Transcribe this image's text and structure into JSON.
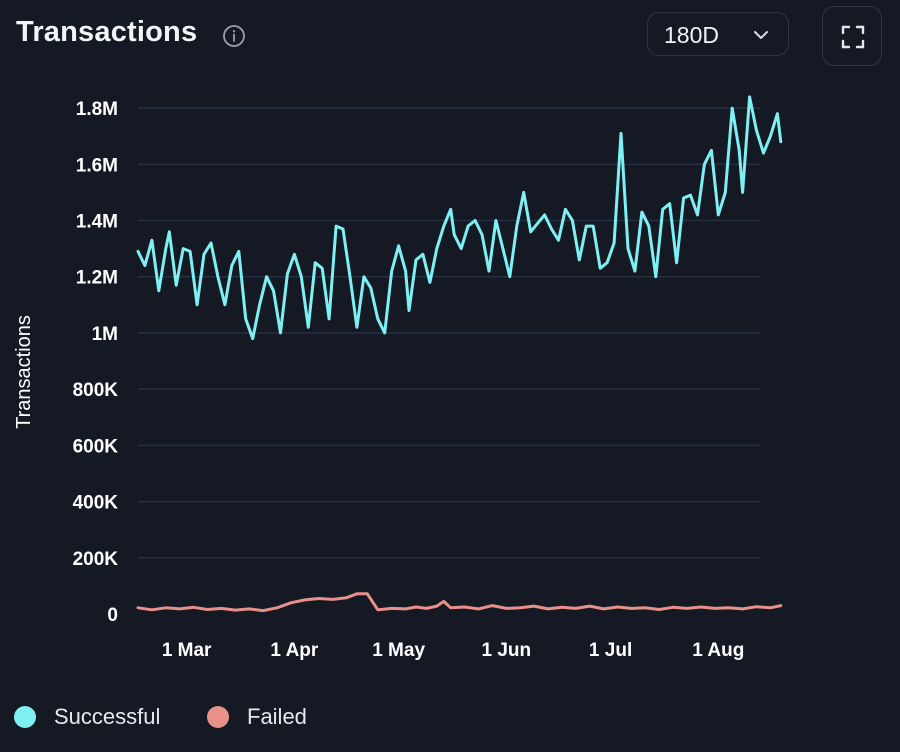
{
  "header": {
    "title": "Transactions",
    "range_value": "180D"
  },
  "colors": {
    "successful": "#7ef0f4",
    "failed": "#e8908a",
    "grid": "#253042",
    "text": "#ffffff"
  },
  "chart_data": {
    "type": "line",
    "title": "Transactions",
    "xlabel": "",
    "ylabel": "Transactions",
    "ylim": [
      0,
      1900000
    ],
    "grid": true,
    "legend_position": "bottom-left",
    "y_ticks": [
      {
        "value": 0,
        "label": "0"
      },
      {
        "value": 200000,
        "label": "200K"
      },
      {
        "value": 400000,
        "label": "400K"
      },
      {
        "value": 600000,
        "label": "600K"
      },
      {
        "value": 800000,
        "label": "800K"
      },
      {
        "value": 1000000,
        "label": "1M"
      },
      {
        "value": 1200000,
        "label": "1.2M"
      },
      {
        "value": 1400000,
        "label": "1.4M"
      },
      {
        "value": 1600000,
        "label": "1.6M"
      },
      {
        "value": 1800000,
        "label": "1.8M"
      }
    ],
    "x_ticks": [
      {
        "day": 14,
        "label": "1 Mar"
      },
      {
        "day": 45,
        "label": "1 Apr"
      },
      {
        "day": 75,
        "label": "1 May"
      },
      {
        "day": 106,
        "label": "1 Jun"
      },
      {
        "day": 136,
        "label": "1 Jul"
      },
      {
        "day": 167,
        "label": "1 Aug"
      }
    ],
    "x_start_day": 0,
    "x_end_day": 179,
    "series": [
      {
        "name": "Successful",
        "color": "#7ef0f4",
        "points": [
          [
            0,
            1290000
          ],
          [
            2,
            1240000
          ],
          [
            4,
            1330000
          ],
          [
            6,
            1150000
          ],
          [
            8,
            1300000
          ],
          [
            9,
            1360000
          ],
          [
            11,
            1170000
          ],
          [
            13,
            1300000
          ],
          [
            15,
            1290000
          ],
          [
            17,
            1100000
          ],
          [
            19,
            1280000
          ],
          [
            21,
            1320000
          ],
          [
            23,
            1200000
          ],
          [
            25,
            1100000
          ],
          [
            27,
            1240000
          ],
          [
            29,
            1290000
          ],
          [
            31,
            1050000
          ],
          [
            33,
            980000
          ],
          [
            35,
            1100000
          ],
          [
            37,
            1200000
          ],
          [
            39,
            1150000
          ],
          [
            41,
            1000000
          ],
          [
            43,
            1210000
          ],
          [
            45,
            1280000
          ],
          [
            47,
            1200000
          ],
          [
            49,
            1020000
          ],
          [
            51,
            1250000
          ],
          [
            53,
            1230000
          ],
          [
            55,
            1050000
          ],
          [
            57,
            1380000
          ],
          [
            59,
            1370000
          ],
          [
            61,
            1200000
          ],
          [
            63,
            1020000
          ],
          [
            65,
            1200000
          ],
          [
            67,
            1160000
          ],
          [
            69,
            1050000
          ],
          [
            71,
            1000000
          ],
          [
            73,
            1220000
          ],
          [
            75,
            1310000
          ],
          [
            77,
            1220000
          ],
          [
            78,
            1080000
          ],
          [
            80,
            1260000
          ],
          [
            82,
            1280000
          ],
          [
            84,
            1180000
          ],
          [
            86,
            1300000
          ],
          [
            88,
            1380000
          ],
          [
            90,
            1440000
          ],
          [
            91,
            1350000
          ],
          [
            93,
            1300000
          ],
          [
            95,
            1380000
          ],
          [
            97,
            1400000
          ],
          [
            99,
            1350000
          ],
          [
            101,
            1220000
          ],
          [
            103,
            1400000
          ],
          [
            105,
            1300000
          ],
          [
            107,
            1200000
          ],
          [
            109,
            1380000
          ],
          [
            111,
            1500000
          ],
          [
            113,
            1360000
          ],
          [
            115,
            1390000
          ],
          [
            117,
            1420000
          ],
          [
            119,
            1370000
          ],
          [
            121,
            1330000
          ],
          [
            123,
            1440000
          ],
          [
            125,
            1400000
          ],
          [
            127,
            1260000
          ],
          [
            129,
            1380000
          ],
          [
            131,
            1380000
          ],
          [
            133,
            1230000
          ],
          [
            135,
            1250000
          ],
          [
            137,
            1320000
          ],
          [
            139,
            1710000
          ],
          [
            141,
            1300000
          ],
          [
            143,
            1220000
          ],
          [
            145,
            1430000
          ],
          [
            147,
            1380000
          ],
          [
            149,
            1200000
          ],
          [
            151,
            1440000
          ],
          [
            153,
            1460000
          ],
          [
            155,
            1250000
          ],
          [
            157,
            1480000
          ],
          [
            159,
            1490000
          ],
          [
            161,
            1420000
          ],
          [
            163,
            1600000
          ],
          [
            165,
            1650000
          ],
          [
            167,
            1420000
          ],
          [
            169,
            1500000
          ],
          [
            171,
            1800000
          ],
          [
            173,
            1650000
          ],
          [
            174,
            1500000
          ],
          [
            176,
            1840000
          ],
          [
            178,
            1720000
          ],
          [
            180,
            1640000
          ],
          [
            182,
            1700000
          ],
          [
            184,
            1780000
          ],
          [
            185,
            1680000
          ]
        ]
      },
      {
        "name": "Failed",
        "color": "#e8908a",
        "points": [
          [
            0,
            22000
          ],
          [
            4,
            15000
          ],
          [
            8,
            22000
          ],
          [
            12,
            18000
          ],
          [
            16,
            24000
          ],
          [
            20,
            16000
          ],
          [
            24,
            20000
          ],
          [
            28,
            14000
          ],
          [
            32,
            18000
          ],
          [
            36,
            12000
          ],
          [
            40,
            22000
          ],
          [
            44,
            40000
          ],
          [
            48,
            50000
          ],
          [
            52,
            55000
          ],
          [
            56,
            52000
          ],
          [
            60,
            58000
          ],
          [
            63,
            72000
          ],
          [
            66,
            72000
          ],
          [
            69,
            15000
          ],
          [
            73,
            20000
          ],
          [
            77,
            18000
          ],
          [
            80,
            25000
          ],
          [
            83,
            20000
          ],
          [
            86,
            28000
          ],
          [
            88,
            45000
          ],
          [
            90,
            22000
          ],
          [
            94,
            25000
          ],
          [
            98,
            18000
          ],
          [
            102,
            30000
          ],
          [
            106,
            20000
          ],
          [
            110,
            22000
          ],
          [
            114,
            28000
          ],
          [
            118,
            18000
          ],
          [
            122,
            24000
          ],
          [
            126,
            20000
          ],
          [
            130,
            28000
          ],
          [
            134,
            18000
          ],
          [
            138,
            25000
          ],
          [
            142,
            20000
          ],
          [
            146,
            22000
          ],
          [
            150,
            16000
          ],
          [
            154,
            24000
          ],
          [
            158,
            20000
          ],
          [
            162,
            25000
          ],
          [
            166,
            20000
          ],
          [
            170,
            22000
          ],
          [
            174,
            18000
          ],
          [
            178,
            26000
          ],
          [
            182,
            22000
          ],
          [
            185,
            30000
          ]
        ]
      }
    ]
  },
  "legend": {
    "items": [
      {
        "label": "Successful",
        "color": "#7ef0f4"
      },
      {
        "label": "Failed",
        "color": "#e8908a"
      }
    ]
  }
}
